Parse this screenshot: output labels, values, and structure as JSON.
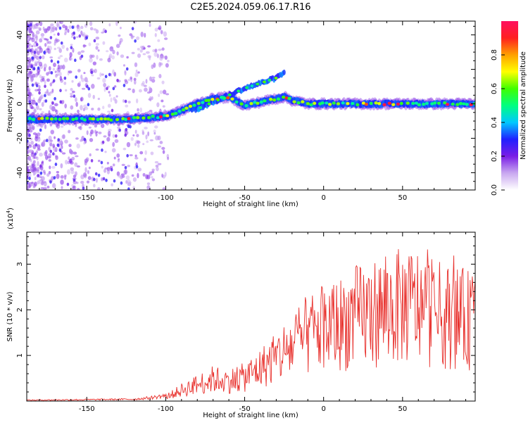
{
  "title": "C2E5.2024.059.06.17.R16",
  "chart_data": [
    {
      "type": "heatmap",
      "xlabel": "Height of straight line (km)",
      "ylabel": "Frequency (Hz)",
      "xlim": [
        -188,
        96
      ],
      "ylim": [
        -50,
        48
      ],
      "xticks": [
        -150,
        -100,
        -50,
        0,
        50
      ],
      "yticks": [
        -40,
        -20,
        0,
        20,
        40
      ],
      "colorbar": {
        "label": "Normalized spectral amplitude",
        "range": [
          0,
          1
        ],
        "ticks": [
          0.0,
          0.2,
          0.4,
          0.6,
          0.8
        ],
        "colors": [
          "#ffffff",
          "#c9a8f0",
          "#7a1ee6",
          "#2020ff",
          "#00c8ff",
          "#00ff80",
          "#40ff00",
          "#ffff00",
          "#ffa000",
          "#ff2020",
          "#ff1060"
        ]
      },
      "main_track": [
        [
          -188,
          -9
        ],
        [
          -160,
          -9
        ],
        [
          -130,
          -9
        ],
        [
          -110,
          -8
        ],
        [
          -100,
          -7
        ],
        [
          -90,
          -4
        ],
        [
          -80,
          0
        ],
        [
          -70,
          3
        ],
        [
          -60,
          4
        ],
        [
          -50,
          -1
        ],
        [
          -40,
          1
        ],
        [
          -30,
          3
        ],
        [
          -25,
          4
        ],
        [
          -20,
          2
        ],
        [
          -15,
          1
        ],
        [
          -10,
          0
        ],
        [
          0,
          0
        ],
        [
          20,
          0
        ],
        [
          50,
          0
        ],
        [
          96,
          0
        ]
      ],
      "secondary_track": [
        [
          -80,
          -3
        ],
        [
          -70,
          1
        ],
        [
          -60,
          5
        ],
        [
          -50,
          9
        ],
        [
          -40,
          12
        ],
        [
          -30,
          15
        ],
        [
          -25,
          18
        ]
      ]
    },
    {
      "type": "line",
      "xlabel": "Height of straight line (km)",
      "ylabel": "SNR (10 * v/v)",
      "multiplier": "(x10^4)",
      "multiplier_base": "(x10",
      "multiplier_exp": "4",
      "xlim": [
        -188,
        96
      ],
      "ylim": [
        0,
        3.7
      ],
      "xticks": [
        -150,
        -100,
        -50,
        0,
        50
      ],
      "yticks": [
        1,
        2,
        3
      ],
      "series": [
        {
          "color": "#e8302c",
          "envelope": [
            [
              -188,
              0.02
            ],
            [
              -120,
              0.04
            ],
            [
              -110,
              0.07
            ],
            [
              -100,
              0.12
            ],
            [
              -95,
              0.2
            ],
            [
              -90,
              0.3
            ],
            [
              -80,
              0.45
            ],
            [
              -70,
              0.6
            ],
            [
              -60,
              0.55
            ],
            [
              -50,
              0.65
            ],
            [
              -40,
              0.9
            ],
            [
              -30,
              1.2
            ],
            [
              -20,
              1.5
            ],
            [
              -10,
              1.8
            ],
            [
              0,
              2.0
            ],
            [
              10,
              2.1
            ],
            [
              20,
              2.3
            ],
            [
              30,
              2.4
            ],
            [
              40,
              2.5
            ],
            [
              50,
              2.6
            ],
            [
              60,
              2.6
            ],
            [
              70,
              2.4
            ],
            [
              80,
              2.3
            ],
            [
              96,
              2.2
            ]
          ]
        }
      ]
    }
  ]
}
